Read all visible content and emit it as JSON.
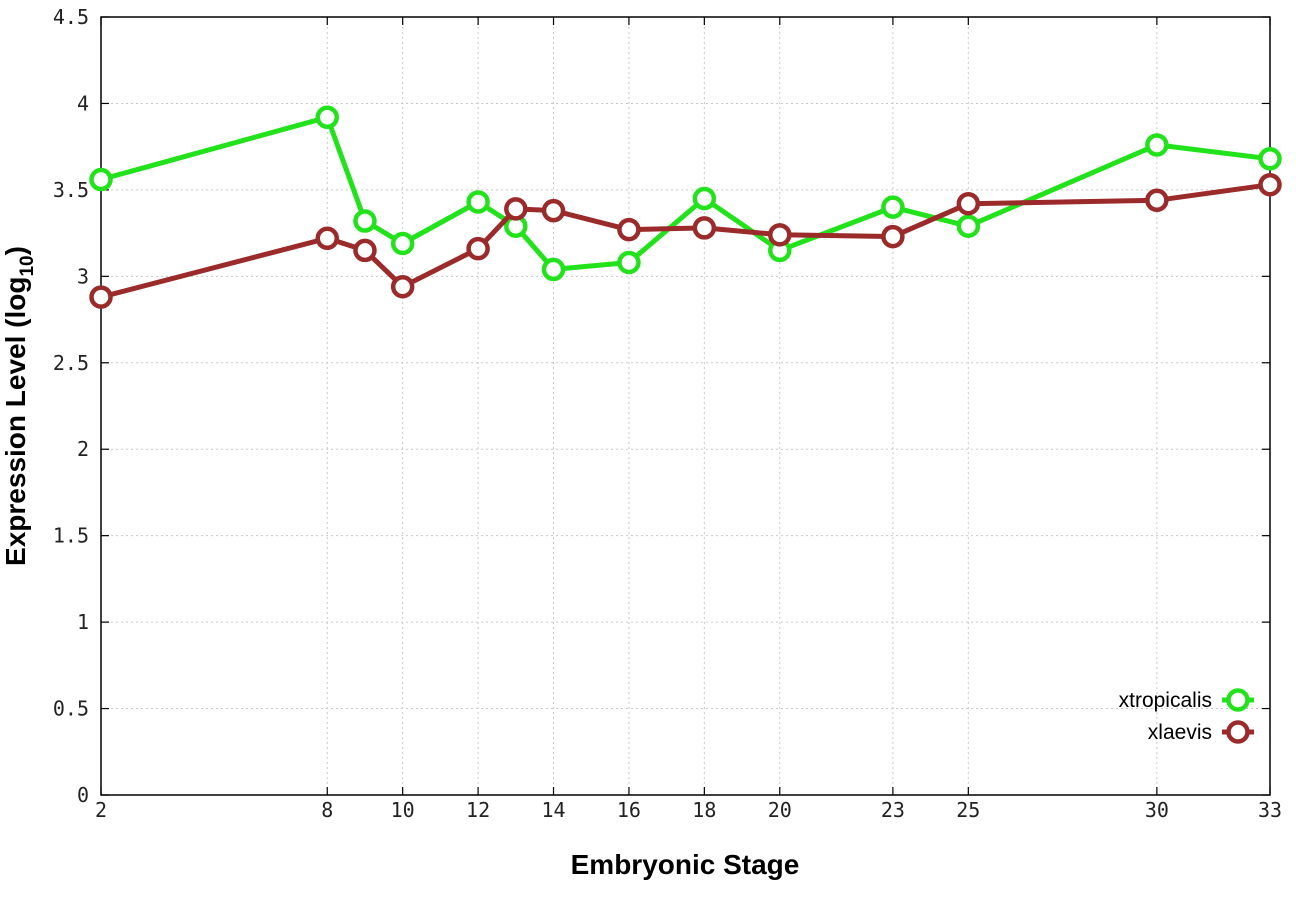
{
  "chart_data": {
    "type": "line",
    "title": "",
    "xlabel": "Embryonic Stage",
    "ylabel_main": "Expression Level (log",
    "ylabel_sub": "10",
    "ylabel_close": ")",
    "xlim": [
      2,
      33
    ],
    "ylim": [
      0,
      4.5
    ],
    "x_ticks": [
      2,
      8,
      10,
      12,
      14,
      16,
      18,
      20,
      23,
      25,
      30,
      33
    ],
    "x_tick_labels": [
      "2",
      "8",
      "10",
      "12",
      "14",
      "16",
      "18",
      "20",
      "23",
      "25",
      "30",
      "33"
    ],
    "y_ticks": [
      0,
      0.5,
      1,
      1.5,
      2,
      2.5,
      3,
      3.5,
      4,
      4.5
    ],
    "y_tick_labels": [
      "0",
      "0.5",
      "1",
      "1.5",
      "2",
      "2.5",
      "3",
      "3.5",
      "4",
      "4.5"
    ],
    "grid": true,
    "legend_position": "bottom-right",
    "series": [
      {
        "name": "xtropicalis",
        "color": "#22e31b",
        "x": [
          2,
          8,
          9,
          10,
          12,
          13,
          14,
          16,
          18,
          20,
          23,
          25,
          30,
          33
        ],
        "values": [
          3.56,
          3.92,
          3.32,
          3.19,
          3.43,
          3.29,
          3.04,
          3.08,
          3.45,
          3.15,
          3.4,
          3.29,
          3.76,
          3.68
        ]
      },
      {
        "name": "xlaevis",
        "color": "#9b2a2a",
        "x": [
          2,
          8,
          9,
          10,
          12,
          13,
          14,
          16,
          18,
          20,
          23,
          25,
          30,
          33
        ],
        "values": [
          2.88,
          3.22,
          3.15,
          2.94,
          3.16,
          3.39,
          3.38,
          3.27,
          3.28,
          3.24,
          3.23,
          3.42,
          3.44,
          3.53
        ]
      }
    ]
  }
}
